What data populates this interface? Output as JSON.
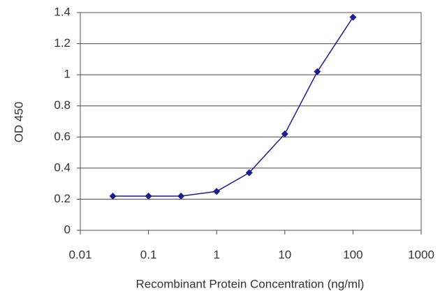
{
  "chart_data": {
    "type": "line",
    "x_label": "Recombinant Protein Concentration (ng/ml)",
    "y_label": "OD 450",
    "x": [
      0.03,
      0.1,
      0.3,
      1,
      3,
      10,
      30,
      100
    ],
    "values": [
      0.22,
      0.22,
      0.22,
      0.25,
      0.37,
      0.62,
      1.02,
      1.37
    ],
    "color": "#1c1c8f",
    "x_log": true,
    "xlim": [
      0.01,
      1000
    ],
    "xticks": [
      0.01,
      0.1,
      1,
      10,
      100,
      1000
    ],
    "ylim": [
      0,
      1.4
    ],
    "yticks": [
      0,
      0.2,
      0.4,
      0.6,
      0.8,
      1,
      1.2,
      1.4
    ],
    "grid": true
  }
}
